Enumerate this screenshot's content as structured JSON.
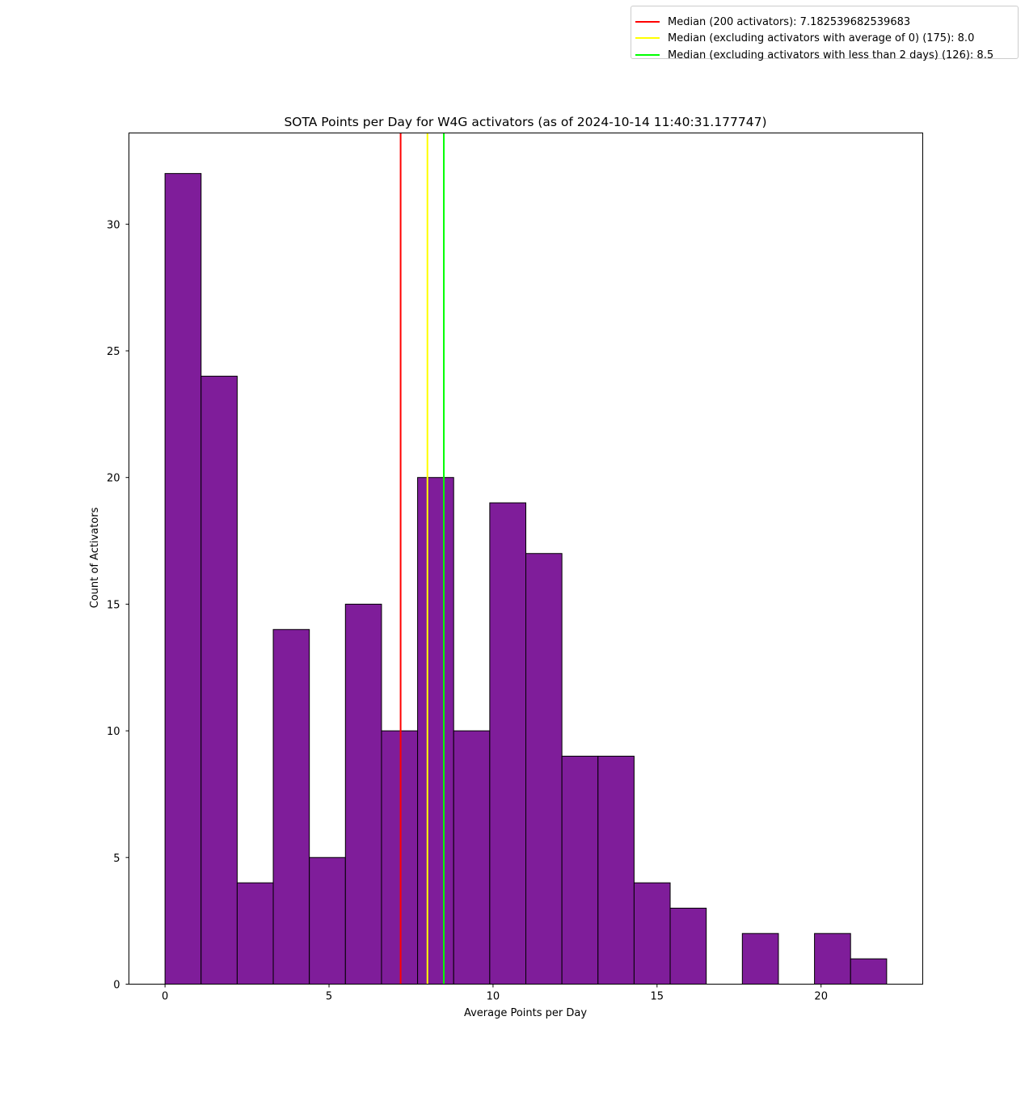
{
  "chart_data": {
    "type": "bar",
    "title": "SOTA Points per Day for W4G activators (as of 2024-10-14 11:40:31.177747)",
    "xlabel": "Average Points per Day",
    "ylabel": "Count of Activators",
    "xlim": [
      -1.1,
      23.1
    ],
    "ylim": [
      0,
      33.6
    ],
    "xticks": [
      0,
      5,
      10,
      15,
      20
    ],
    "yticks": [
      0,
      5,
      10,
      15,
      20,
      25,
      30
    ],
    "bar_color": "#7f1d9a",
    "edge_color": "#000000",
    "bins": [
      {
        "x0": 0.0,
        "x1": 1.1,
        "count": 32
      },
      {
        "x0": 1.1,
        "x1": 2.2,
        "count": 24
      },
      {
        "x0": 2.2,
        "x1": 3.3,
        "count": 4
      },
      {
        "x0": 3.3,
        "x1": 4.4,
        "count": 14
      },
      {
        "x0": 4.4,
        "x1": 5.5,
        "count": 5
      },
      {
        "x0": 5.5,
        "x1": 6.6,
        "count": 15
      },
      {
        "x0": 6.6,
        "x1": 7.7,
        "count": 10
      },
      {
        "x0": 7.7,
        "x1": 8.8,
        "count": 20
      },
      {
        "x0": 8.8,
        "x1": 9.9,
        "count": 10
      },
      {
        "x0": 9.9,
        "x1": 11.0,
        "count": 19
      },
      {
        "x0": 11.0,
        "x1": 12.1,
        "count": 17
      },
      {
        "x0": 12.1,
        "x1": 13.2,
        "count": 9
      },
      {
        "x0": 13.2,
        "x1": 14.3,
        "count": 9
      },
      {
        "x0": 14.3,
        "x1": 15.4,
        "count": 4
      },
      {
        "x0": 15.4,
        "x1": 16.5,
        "count": 3
      },
      {
        "x0": 16.5,
        "x1": 17.6,
        "count": 0
      },
      {
        "x0": 17.6,
        "x1": 18.7,
        "count": 2
      },
      {
        "x0": 18.7,
        "x1": 19.8,
        "count": 0
      },
      {
        "x0": 19.8,
        "x1": 20.9,
        "count": 2
      },
      {
        "x0": 20.9,
        "x1": 22.0,
        "count": 1
      }
    ],
    "reference_lines": [
      {
        "label": "Median (200 activators): 7.182539682539683",
        "x": 7.182539682539683,
        "color": "#ff0000"
      },
      {
        "label": "Median (excluding activators with average of 0) (175): 8.0",
        "x": 8.0,
        "color": "#ffff00"
      },
      {
        "label": "Median (excluding activators with less than 2 days) (126): 8.5",
        "x": 8.5,
        "color": "#00ff00"
      }
    ],
    "legend_position": "top-right",
    "grid": false
  }
}
